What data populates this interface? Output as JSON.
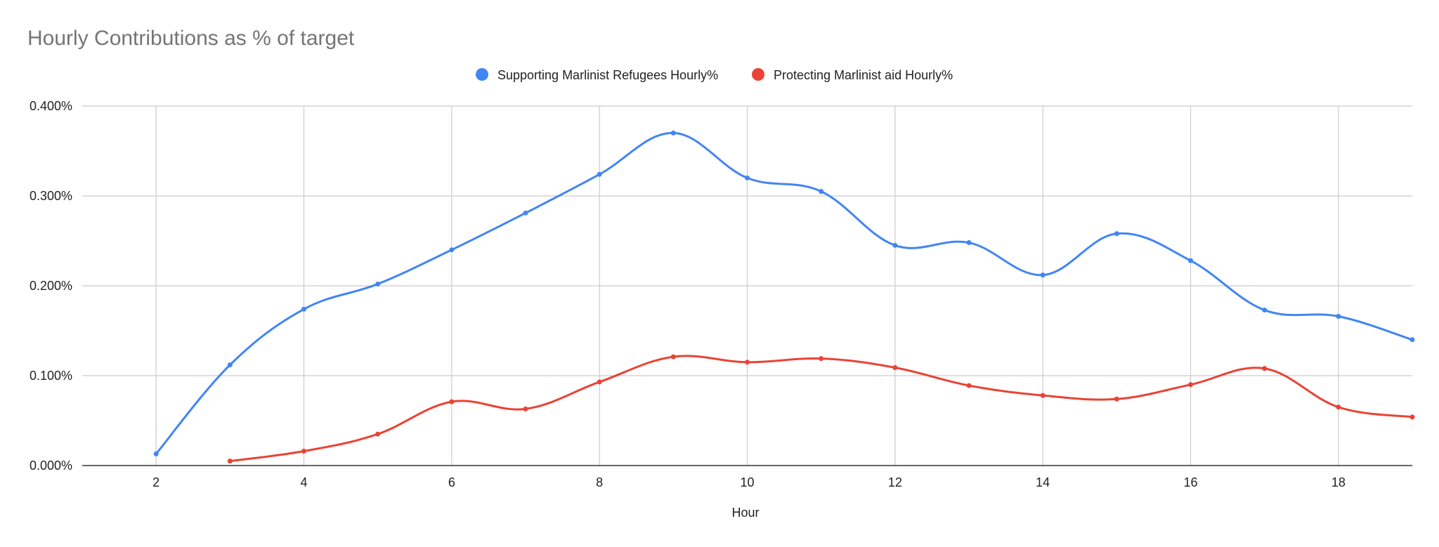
{
  "chart_data": {
    "type": "line",
    "title": "Hourly Contributions as % of target",
    "xlabel": "Hour",
    "ylabel": "",
    "xlim": [
      1,
      19
    ],
    "ylim": [
      0,
      0.4
    ],
    "x_ticks": [
      2,
      4,
      6,
      8,
      10,
      12,
      14,
      16,
      18
    ],
    "y_ticks": [
      0,
      0.1,
      0.2,
      0.3,
      0.4
    ],
    "y_tick_labels": [
      "0.000%",
      "0.100%",
      "0.200%",
      "0.300%",
      "0.400%"
    ],
    "grid": true,
    "legend_position": "top-center",
    "series": [
      {
        "name": "Supporting Marlinist Refugees Hourly%",
        "color": "#4285f4",
        "x": [
          2,
          3,
          4,
          5,
          6,
          7,
          8,
          9,
          10,
          11,
          12,
          13,
          14,
          15,
          16,
          17,
          18,
          19
        ],
        "values": [
          0.013,
          0.112,
          0.174,
          0.202,
          0.24,
          0.281,
          0.324,
          0.37,
          0.32,
          0.305,
          0.245,
          0.248,
          0.212,
          0.258,
          0.228,
          0.173,
          0.166,
          0.14
        ]
      },
      {
        "name": "Protecting Marlinist aid Hourly%",
        "color": "#ea4335",
        "x": [
          3,
          4,
          5,
          6,
          7,
          8,
          9,
          10,
          11,
          12,
          13,
          14,
          15,
          16,
          17,
          18,
          19
        ],
        "values": [
          0.005,
          0.016,
          0.035,
          0.071,
          0.063,
          0.093,
          0.121,
          0.115,
          0.119,
          0.109,
          0.089,
          0.078,
          0.074,
          0.09,
          0.108,
          0.065,
          0.054
        ]
      }
    ]
  }
}
